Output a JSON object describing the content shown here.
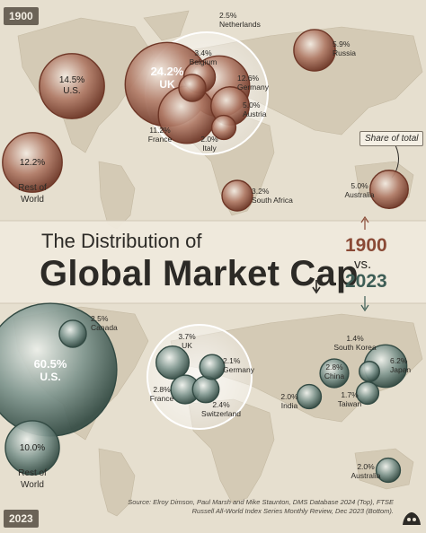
{
  "title_small": "The Distribution of",
  "title_big": "Global Market Cap",
  "year_top": "1900",
  "year_vs": "vs.",
  "year_bottom": "2023",
  "badge_top": "1900",
  "badge_bottom": "2023",
  "share_label": "Share of total",
  "source": "Source: Elroy Dimson, Paul Marsh and Mike Staunton, DMS Database 2024 (Top), FTSE Russell All-World Index Series Monthly Review, Dec 2023 (Bottom).",
  "colors": {
    "y1900_fill": "#8a4a36",
    "y2023_fill": "#4f6b63",
    "background": "#e9e2d3",
    "land": "#d6cdb9"
  },
  "chart_data": [
    {
      "type": "bubble",
      "year": "1900",
      "unit": "%",
      "series": [
        {
          "name": "U.S.",
          "value": 14.5
        },
        {
          "name": "UK",
          "value": 24.2
        },
        {
          "name": "Germany",
          "value": 12.6
        },
        {
          "name": "France",
          "value": 11.2
        },
        {
          "name": "Russia",
          "value": 5.9
        },
        {
          "name": "Austria",
          "value": 5.0
        },
        {
          "name": "Australia",
          "value": 5.0
        },
        {
          "name": "Belgium",
          "value": 3.4
        },
        {
          "name": "South Africa",
          "value": 3.2
        },
        {
          "name": "Netherlands",
          "value": 2.5
        },
        {
          "name": "Italy",
          "value": 2.0
        },
        {
          "name": "Rest of World",
          "value": 12.2
        }
      ]
    },
    {
      "type": "bubble",
      "year": "2023",
      "unit": "%",
      "series": [
        {
          "name": "U.S.",
          "value": 60.5
        },
        {
          "name": "Japan",
          "value": 6.2
        },
        {
          "name": "UK",
          "value": 3.7
        },
        {
          "name": "China",
          "value": 2.8
        },
        {
          "name": "France",
          "value": 2.8
        },
        {
          "name": "Canada",
          "value": 2.5
        },
        {
          "name": "Switzerland",
          "value": 2.4
        },
        {
          "name": "Germany",
          "value": 2.1
        },
        {
          "name": "India",
          "value": 2.0
        },
        {
          "name": "Australia",
          "value": 2.0
        },
        {
          "name": "Taiwan",
          "value": 1.7
        },
        {
          "name": "South Korea",
          "value": 1.4
        },
        {
          "name": "Rest of World",
          "value": 10.0
        }
      ]
    }
  ]
}
